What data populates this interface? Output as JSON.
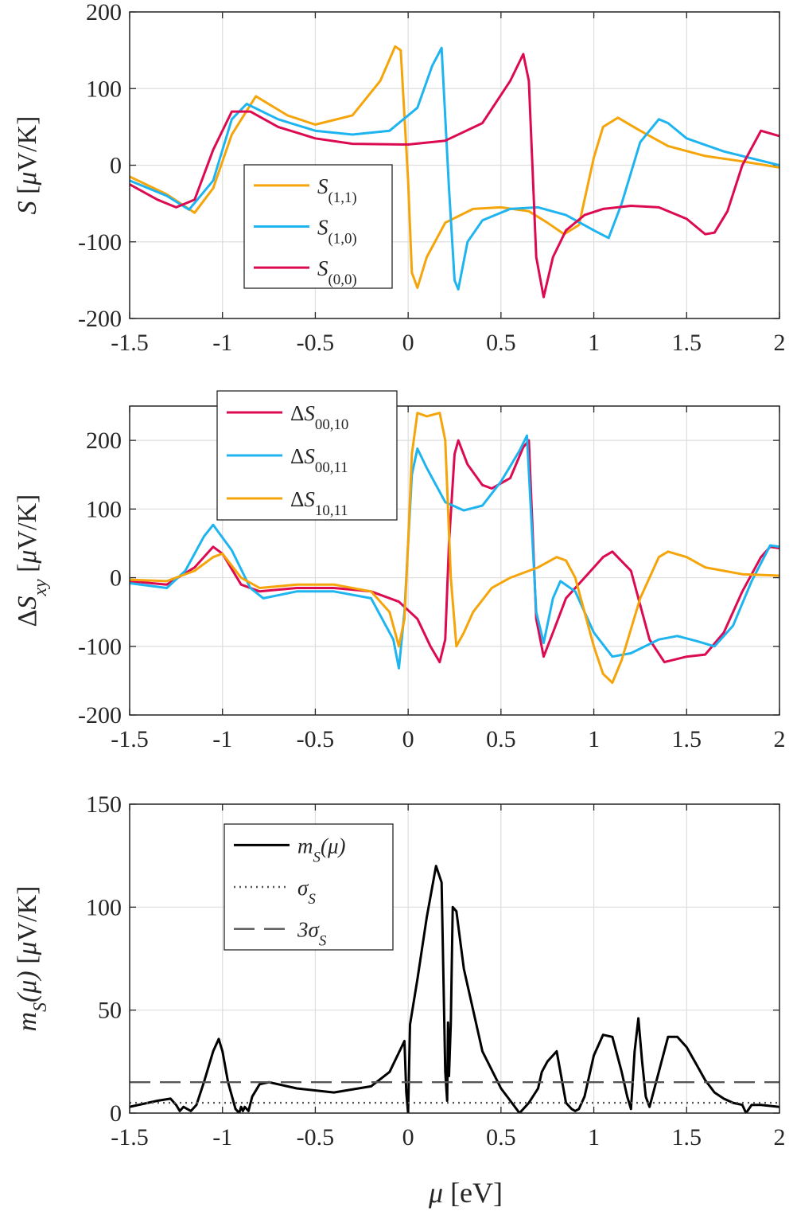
{
  "chart_data": [
    {
      "type": "line",
      "ylabel": "S [μV/K]",
      "xlim": [
        -1.5,
        2
      ],
      "ylim": [
        -200,
        200
      ],
      "xticks": [
        "-1.5",
        "-1",
        "-0.5",
        "0",
        "0.5",
        "1",
        "1.5",
        "2"
      ],
      "yticks": [
        "200",
        "100",
        "0",
        "-100",
        "-200"
      ],
      "grid": true,
      "legend": {
        "position": "center-left",
        "entries": [
          "S(1,1)",
          "S(1,0)",
          "S(0,0)"
        ]
      },
      "series": [
        {
          "name": "S(1,1)",
          "color": "#F5A50A",
          "x": [
            -1.5,
            -1.3,
            -1.15,
            -1.05,
            -0.95,
            -0.82,
            -0.65,
            -0.5,
            -0.3,
            -0.15,
            -0.07,
            -0.04,
            0.0,
            0.02,
            0.05,
            0.1,
            0.2,
            0.35,
            0.5,
            0.65,
            0.75,
            0.84,
            0.92,
            1.0,
            1.05,
            1.13,
            1.25,
            1.4,
            1.6,
            1.8,
            2.0
          ],
          "y": [
            -15,
            -38,
            -62,
            -30,
            40,
            90,
            65,
            53,
            65,
            110,
            155,
            150,
            -20,
            -140,
            -160,
            -120,
            -75,
            -57,
            -55,
            -60,
            -75,
            -90,
            -78,
            10,
            50,
            62,
            45,
            25,
            12,
            5,
            -3
          ]
        },
        {
          "name": "S(1,0)",
          "color": "#1EB4F0",
          "x": [
            -1.5,
            -1.3,
            -1.18,
            -1.05,
            -0.95,
            -0.87,
            -0.7,
            -0.5,
            -0.3,
            -0.1,
            0.05,
            0.13,
            0.18,
            0.22,
            0.25,
            0.27,
            0.32,
            0.4,
            0.55,
            0.7,
            0.85,
            1.0,
            1.08,
            1.15,
            1.25,
            1.35,
            1.4,
            1.5,
            1.7,
            2.0
          ],
          "y": [
            -20,
            -40,
            -58,
            -20,
            60,
            80,
            60,
            45,
            40,
            45,
            75,
            130,
            153,
            -30,
            -150,
            -162,
            -100,
            -72,
            -57,
            -55,
            -65,
            -85,
            -95,
            -50,
            30,
            60,
            55,
            35,
            18,
            0
          ]
        },
        {
          "name": "S(0,0)",
          "color": "#DC0A50",
          "x": [
            -1.5,
            -1.35,
            -1.25,
            -1.15,
            -1.05,
            -0.95,
            -0.85,
            -0.7,
            -0.5,
            -0.3,
            0.0,
            0.2,
            0.4,
            0.55,
            0.62,
            0.65,
            0.69,
            0.73,
            0.78,
            0.85,
            0.95,
            1.05,
            1.2,
            1.35,
            1.5,
            1.6,
            1.65,
            1.72,
            1.8,
            1.9,
            2.0
          ],
          "y": [
            -25,
            -45,
            -55,
            -45,
            20,
            70,
            70,
            50,
            35,
            28,
            27,
            32,
            55,
            110,
            145,
            110,
            -120,
            -172,
            -120,
            -85,
            -65,
            -57,
            -53,
            -55,
            -70,
            -90,
            -88,
            -60,
            0,
            45,
            38
          ]
        }
      ]
    },
    {
      "type": "line",
      "ylabel": "ΔSxy [μV/K]",
      "xlim": [
        -1.5,
        2
      ],
      "ylim": [
        -200,
        250
      ],
      "xticks": [
        "-1.5",
        "-1",
        "-0.5",
        "0",
        "0.5",
        "1",
        "1.5",
        "2"
      ],
      "yticks": [
        "200",
        "100",
        "0",
        "-100",
        "-200"
      ],
      "grid": true,
      "legend": {
        "position": "top-left",
        "entries": [
          "ΔS00,10",
          "ΔS00,11",
          "ΔS10,11"
        ]
      },
      "series": [
        {
          "name": "ΔS00,10",
          "color": "#DC0A50",
          "x": [
            -1.5,
            -1.3,
            -1.15,
            -1.05,
            -1.0,
            -0.9,
            -0.8,
            -0.6,
            -0.4,
            -0.2,
            -0.05,
            0.05,
            0.12,
            0.17,
            0.2,
            0.22,
            0.25,
            0.27,
            0.32,
            0.4,
            0.45,
            0.55,
            0.62,
            0.65,
            0.69,
            0.73,
            0.78,
            0.85,
            0.95,
            1.05,
            1.1,
            1.2,
            1.3,
            1.38,
            1.5,
            1.6,
            1.7,
            1.8,
            1.9,
            1.95,
            2.0
          ],
          "y": [
            -5,
            -10,
            15,
            45,
            35,
            -10,
            -20,
            -15,
            -15,
            -20,
            -35,
            -60,
            -100,
            -123,
            -90,
            50,
            180,
            200,
            165,
            135,
            130,
            145,
            190,
            200,
            -60,
            -115,
            -80,
            -30,
            0,
            30,
            38,
            10,
            -90,
            -123,
            -115,
            -112,
            -80,
            -20,
            30,
            45,
            43
          ]
        },
        {
          "name": "ΔS00,11",
          "color": "#1EB4F0",
          "x": [
            -1.5,
            -1.3,
            -1.2,
            -1.1,
            -1.05,
            -0.95,
            -0.85,
            -0.78,
            -0.6,
            -0.4,
            -0.2,
            -0.08,
            -0.05,
            -0.02,
            0.02,
            0.05,
            0.1,
            0.2,
            0.3,
            0.4,
            0.5,
            0.6,
            0.64,
            0.69,
            0.73,
            0.78,
            0.82,
            0.9,
            1.0,
            1.1,
            1.2,
            1.35,
            1.45,
            1.55,
            1.65,
            1.75,
            1.85,
            1.95,
            2.0
          ],
          "y": [
            -8,
            -15,
            10,
            60,
            77,
            40,
            -15,
            -30,
            -20,
            -20,
            -30,
            -90,
            -132,
            -50,
            150,
            188,
            160,
            110,
            98,
            105,
            140,
            185,
            207,
            -50,
            -95,
            -30,
            -5,
            -20,
            -80,
            -115,
            -110,
            -90,
            -85,
            -92,
            -100,
            -70,
            -5,
            47,
            45
          ]
        },
        {
          "name": "ΔS10,11",
          "color": "#F5A50A",
          "x": [
            -1.5,
            -1.3,
            -1.15,
            -1.05,
            -1.0,
            -0.9,
            -0.8,
            -0.6,
            -0.4,
            -0.2,
            -0.1,
            -0.05,
            -0.02,
            0.0,
            0.02,
            0.05,
            0.1,
            0.17,
            0.2,
            0.23,
            0.26,
            0.3,
            0.35,
            0.45,
            0.55,
            0.7,
            0.8,
            0.85,
            0.9,
            0.95,
            1.0,
            1.05,
            1.1,
            1.15,
            1.25,
            1.35,
            1.4,
            1.5,
            1.6,
            1.8,
            2.0
          ],
          "y": [
            -3,
            -5,
            10,
            30,
            35,
            0,
            -15,
            -10,
            -10,
            -20,
            -50,
            -100,
            -60,
            50,
            180,
            240,
            235,
            240,
            200,
            0,
            -100,
            -80,
            -50,
            -15,
            0,
            15,
            30,
            25,
            0,
            -50,
            -100,
            -140,
            -153,
            -120,
            -30,
            30,
            38,
            30,
            15,
            5,
            3
          ]
        }
      ]
    },
    {
      "type": "line",
      "ylabel": "mS(μ) [μV/K]",
      "xlabel": "μ [eV]",
      "xlim": [
        -1.5,
        2
      ],
      "ylim": [
        0,
        150
      ],
      "xticks": [
        "-1.5",
        "-1",
        "-0.5",
        "0",
        "0.5",
        "1",
        "1.5",
        "2"
      ],
      "yticks": [
        "150",
        "100",
        "50",
        "0"
      ],
      "grid": true,
      "legend": {
        "position": "top-left",
        "entries": [
          "mS(μ)",
          "σS",
          "3σS"
        ]
      },
      "series": [
        {
          "name": "mS(μ)",
          "color": "#000000",
          "x": [
            -1.5,
            -1.35,
            -1.28,
            -1.25,
            -1.23,
            -1.21,
            -1.19,
            -1.17,
            -1.14,
            -1.1,
            -1.05,
            -1.02,
            -1.0,
            -0.97,
            -0.93,
            -0.91,
            -0.9,
            -0.89,
            -0.88,
            -0.86,
            -0.84,
            -0.8,
            -0.75,
            -0.6,
            -0.4,
            -0.2,
            -0.1,
            -0.02,
            -0.01,
            0.0,
            0.01,
            0.05,
            0.1,
            0.15,
            0.18,
            0.2,
            0.21,
            0.215,
            0.22,
            0.23,
            0.24,
            0.26,
            0.3,
            0.4,
            0.5,
            0.6,
            0.65,
            0.7,
            0.72,
            0.75,
            0.8,
            0.82,
            0.85,
            0.88,
            0.9,
            0.92,
            0.95,
            1.0,
            1.05,
            1.1,
            1.15,
            1.18,
            1.2,
            1.22,
            1.24,
            1.26,
            1.28,
            1.3,
            1.35,
            1.4,
            1.45,
            1.5,
            1.55,
            1.6,
            1.65,
            1.7,
            1.75,
            1.8,
            1.82,
            1.85,
            1.9,
            2.0
          ],
          "y": [
            3,
            6,
            7,
            4,
            1,
            3,
            2,
            1,
            4,
            15,
            30,
            36,
            30,
            15,
            2,
            0,
            3,
            1,
            3,
            1,
            8,
            14,
            15,
            12,
            10,
            13,
            20,
            35,
            10,
            0,
            43,
            65,
            95,
            120,
            112,
            20,
            6,
            44,
            18,
            44,
            100,
            98,
            70,
            30,
            12,
            0,
            5,
            12,
            20,
            25,
            30,
            20,
            5,
            2,
            1,
            2,
            8,
            28,
            38,
            37,
            20,
            8,
            2,
            30,
            46,
            25,
            8,
            3,
            20,
            37,
            37,
            32,
            24,
            16,
            10,
            7,
            5,
            4,
            0,
            4,
            4,
            3
          ]
        },
        {
          "name": "σS",
          "color": "#555555",
          "dash": "dotted",
          "value": 5
        },
        {
          "name": "3σS",
          "color": "#555555",
          "dash": "dashed",
          "value": 15
        }
      ]
    }
  ]
}
